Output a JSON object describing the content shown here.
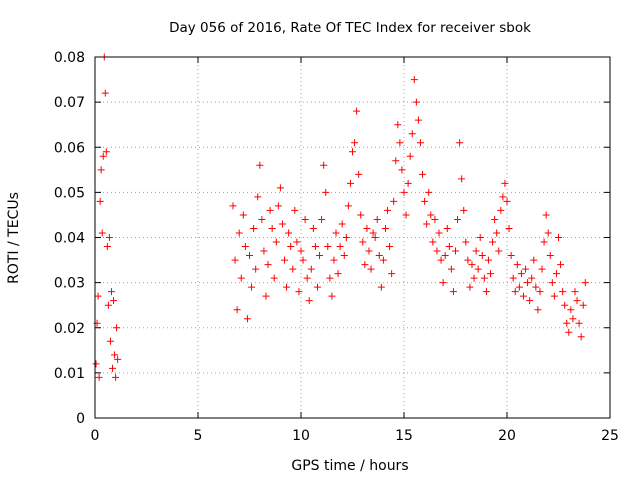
{
  "chart_data": {
    "type": "scatter",
    "title": "Day 056 of 2016, Rate Of TEC Index for receiver sbok",
    "xlabel": "GPS time / hours",
    "ylabel": "ROTI / TECUs",
    "xlim": [
      0,
      25
    ],
    "ylim": [
      0,
      0.08
    ],
    "xticks": [
      0,
      5,
      10,
      15,
      20,
      25
    ],
    "yticks": [
      0,
      0.01,
      0.02,
      0.03,
      0.04,
      0.05,
      0.06,
      0.07,
      0.08
    ],
    "xtick_labels": [
      "0",
      "5",
      "10",
      "15",
      "20",
      "25"
    ],
    "ytick_labels": [
      "0",
      "0.01",
      "0.02",
      "0.03",
      "0.04",
      "0.05",
      "0.06",
      "0.07",
      "0.08"
    ],
    "grid": true,
    "marker": "+",
    "color": "#ff0000",
    "series": [
      {
        "points": [
          [
            0.05,
            0.012
          ],
          [
            0.1,
            0.021
          ],
          [
            0.15,
            0.027
          ],
          [
            0.2,
            0.009
          ],
          [
            0.25,
            0.048
          ],
          [
            0.3,
            0.055
          ],
          [
            0.35,
            0.041
          ],
          [
            0.4,
            0.058
          ],
          [
            0.45,
            0.08
          ],
          [
            0.5,
            0.072
          ],
          [
            0.55,
            0.059
          ],
          [
            0.6,
            0.038
          ],
          [
            0.65,
            0.025
          ],
          [
            0.7,
            0.04
          ],
          [
            0.75,
            0.017
          ],
          [
            0.8,
            0.028
          ],
          [
            0.85,
            0.011
          ],
          [
            0.9,
            0.026
          ],
          [
            0.95,
            0.014
          ],
          [
            1.0,
            0.009
          ],
          [
            1.05,
            0.02
          ],
          [
            1.1,
            0.013
          ],
          [
            6.7,
            0.047
          ],
          [
            6.8,
            0.035
          ],
          [
            6.9,
            0.024
          ],
          [
            7.0,
            0.041
          ],
          [
            7.1,
            0.031
          ],
          [
            7.2,
            0.045
          ],
          [
            7.3,
            0.038
          ],
          [
            7.4,
            0.022
          ],
          [
            7.5,
            0.036
          ],
          [
            7.6,
            0.029
          ],
          [
            7.7,
            0.042
          ],
          [
            7.8,
            0.033
          ],
          [
            7.9,
            0.049
          ],
          [
            8.0,
            0.056
          ],
          [
            8.1,
            0.044
          ],
          [
            8.2,
            0.037
          ],
          [
            8.3,
            0.027
          ],
          [
            8.4,
            0.034
          ],
          [
            8.5,
            0.046
          ],
          [
            8.6,
            0.042
          ],
          [
            8.7,
            0.031
          ],
          [
            8.8,
            0.039
          ],
          [
            8.9,
            0.047
          ],
          [
            9.0,
            0.051
          ],
          [
            9.1,
            0.043
          ],
          [
            9.2,
            0.035
          ],
          [
            9.3,
            0.029
          ],
          [
            9.4,
            0.041
          ],
          [
            9.5,
            0.038
          ],
          [
            9.6,
            0.033
          ],
          [
            9.7,
            0.046
          ],
          [
            9.8,
            0.039
          ],
          [
            9.9,
            0.028
          ],
          [
            10.0,
            0.037
          ],
          [
            10.1,
            0.035
          ],
          [
            10.2,
            0.044
          ],
          [
            10.3,
            0.031
          ],
          [
            10.4,
            0.026
          ],
          [
            10.5,
            0.033
          ],
          [
            10.6,
            0.042
          ],
          [
            10.7,
            0.038
          ],
          [
            10.8,
            0.029
          ],
          [
            10.9,
            0.036
          ],
          [
            11.0,
            0.044
          ],
          [
            11.1,
            0.056
          ],
          [
            11.2,
            0.05
          ],
          [
            11.3,
            0.038
          ],
          [
            11.4,
            0.031
          ],
          [
            11.5,
            0.027
          ],
          [
            11.6,
            0.035
          ],
          [
            11.7,
            0.041
          ],
          [
            11.8,
            0.032
          ],
          [
            11.9,
            0.038
          ],
          [
            12.0,
            0.043
          ],
          [
            12.1,
            0.036
          ],
          [
            12.2,
            0.04
          ],
          [
            12.3,
            0.047
          ],
          [
            12.4,
            0.052
          ],
          [
            12.5,
            0.059
          ],
          [
            12.6,
            0.061
          ],
          [
            12.7,
            0.068
          ],
          [
            12.8,
            0.054
          ],
          [
            12.9,
            0.045
          ],
          [
            13.0,
            0.039
          ],
          [
            13.1,
            0.034
          ],
          [
            13.2,
            0.042
          ],
          [
            13.3,
            0.037
          ],
          [
            13.4,
            0.033
          ],
          [
            13.5,
            0.041
          ],
          [
            13.6,
            0.04
          ],
          [
            13.7,
            0.044
          ],
          [
            13.8,
            0.036
          ],
          [
            13.9,
            0.029
          ],
          [
            14.0,
            0.035
          ],
          [
            14.1,
            0.042
          ],
          [
            14.2,
            0.046
          ],
          [
            14.3,
            0.038
          ],
          [
            14.4,
            0.032
          ],
          [
            14.5,
            0.048
          ],
          [
            14.6,
            0.057
          ],
          [
            14.7,
            0.065
          ],
          [
            14.8,
            0.061
          ],
          [
            14.9,
            0.055
          ],
          [
            15.0,
            0.05
          ],
          [
            15.1,
            0.045
          ],
          [
            15.2,
            0.052
          ],
          [
            15.3,
            0.058
          ],
          [
            15.4,
            0.063
          ],
          [
            15.5,
            0.075
          ],
          [
            15.6,
            0.07
          ],
          [
            15.7,
            0.066
          ],
          [
            15.8,
            0.061
          ],
          [
            15.9,
            0.054
          ],
          [
            16.0,
            0.048
          ],
          [
            16.1,
            0.043
          ],
          [
            16.2,
            0.05
          ],
          [
            16.3,
            0.045
          ],
          [
            16.4,
            0.039
          ],
          [
            16.5,
            0.044
          ],
          [
            16.6,
            0.037
          ],
          [
            16.7,
            0.041
          ],
          [
            16.8,
            0.035
          ],
          [
            16.9,
            0.03
          ],
          [
            17.0,
            0.036
          ],
          [
            17.1,
            0.042
          ],
          [
            17.2,
            0.038
          ],
          [
            17.3,
            0.033
          ],
          [
            17.4,
            0.028
          ],
          [
            17.5,
            0.037
          ],
          [
            17.6,
            0.044
          ],
          [
            17.7,
            0.061
          ],
          [
            17.8,
            0.053
          ],
          [
            17.9,
            0.046
          ],
          [
            18.0,
            0.039
          ],
          [
            18.1,
            0.035
          ],
          [
            18.2,
            0.029
          ],
          [
            18.3,
            0.034
          ],
          [
            18.4,
            0.031
          ],
          [
            18.5,
            0.037
          ],
          [
            18.6,
            0.033
          ],
          [
            18.7,
            0.04
          ],
          [
            18.8,
            0.036
          ],
          [
            18.9,
            0.031
          ],
          [
            19.0,
            0.028
          ],
          [
            19.1,
            0.035
          ],
          [
            19.2,
            0.032
          ],
          [
            19.3,
            0.039
          ],
          [
            19.4,
            0.044
          ],
          [
            19.5,
            0.041
          ],
          [
            19.6,
            0.037
          ],
          [
            19.7,
            0.046
          ],
          [
            19.8,
            0.049
          ],
          [
            19.9,
            0.052
          ],
          [
            20.0,
            0.048
          ],
          [
            20.1,
            0.042
          ],
          [
            20.2,
            0.036
          ],
          [
            20.3,
            0.031
          ],
          [
            20.4,
            0.028
          ],
          [
            20.5,
            0.034
          ],
          [
            20.6,
            0.029
          ],
          [
            20.7,
            0.032
          ],
          [
            20.8,
            0.027
          ],
          [
            20.9,
            0.033
          ],
          [
            21.0,
            0.03
          ],
          [
            21.1,
            0.026
          ],
          [
            21.2,
            0.031
          ],
          [
            21.3,
            0.035
          ],
          [
            21.4,
            0.029
          ],
          [
            21.5,
            0.024
          ],
          [
            21.6,
            0.028
          ],
          [
            21.7,
            0.033
          ],
          [
            21.8,
            0.039
          ],
          [
            21.9,
            0.045
          ],
          [
            22.0,
            0.041
          ],
          [
            22.1,
            0.036
          ],
          [
            22.2,
            0.03
          ],
          [
            22.3,
            0.027
          ],
          [
            22.4,
            0.032
          ],
          [
            22.5,
            0.04
          ],
          [
            22.6,
            0.034
          ],
          [
            22.7,
            0.028
          ],
          [
            22.8,
            0.025
          ],
          [
            22.9,
            0.021
          ],
          [
            23.0,
            0.019
          ],
          [
            23.1,
            0.024
          ],
          [
            23.2,
            0.022
          ],
          [
            23.3,
            0.028
          ],
          [
            23.4,
            0.026
          ],
          [
            23.5,
            0.021
          ],
          [
            23.6,
            0.018
          ],
          [
            23.7,
            0.025
          ],
          [
            23.8,
            0.03
          ]
        ]
      }
    ]
  }
}
